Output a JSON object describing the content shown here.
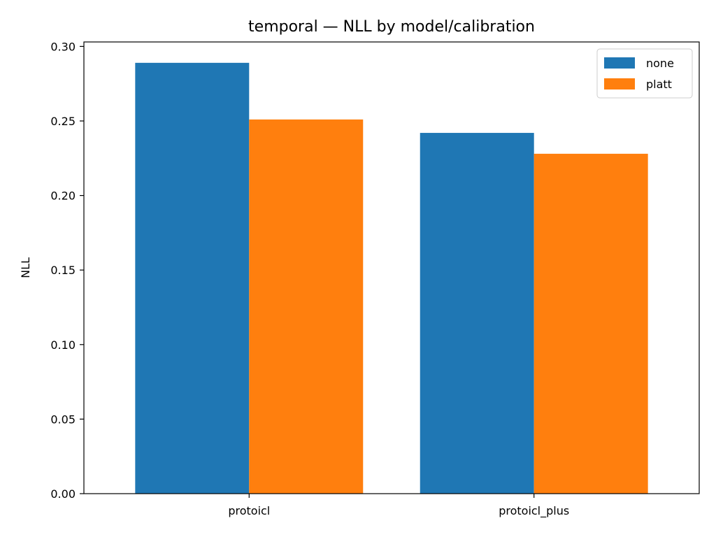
{
  "chart_data": {
    "type": "bar",
    "title": "temporal — NLL by model/calibration",
    "xlabel": "",
    "ylabel": "NLL",
    "categories": [
      "protoicl",
      "protoicl_plus"
    ],
    "series": [
      {
        "name": "none",
        "color": "#1f77b4",
        "values": [
          0.289,
          0.242
        ]
      },
      {
        "name": "platt",
        "color": "#ff7f0e",
        "values": [
          0.251,
          0.228
        ]
      }
    ],
    "ylim": [
      0,
      0.303
    ],
    "yticks": [
      "0.00",
      "0.05",
      "0.10",
      "0.15",
      "0.20",
      "0.25",
      "0.30"
    ],
    "grid": false,
    "legend_position": "top-right"
  }
}
